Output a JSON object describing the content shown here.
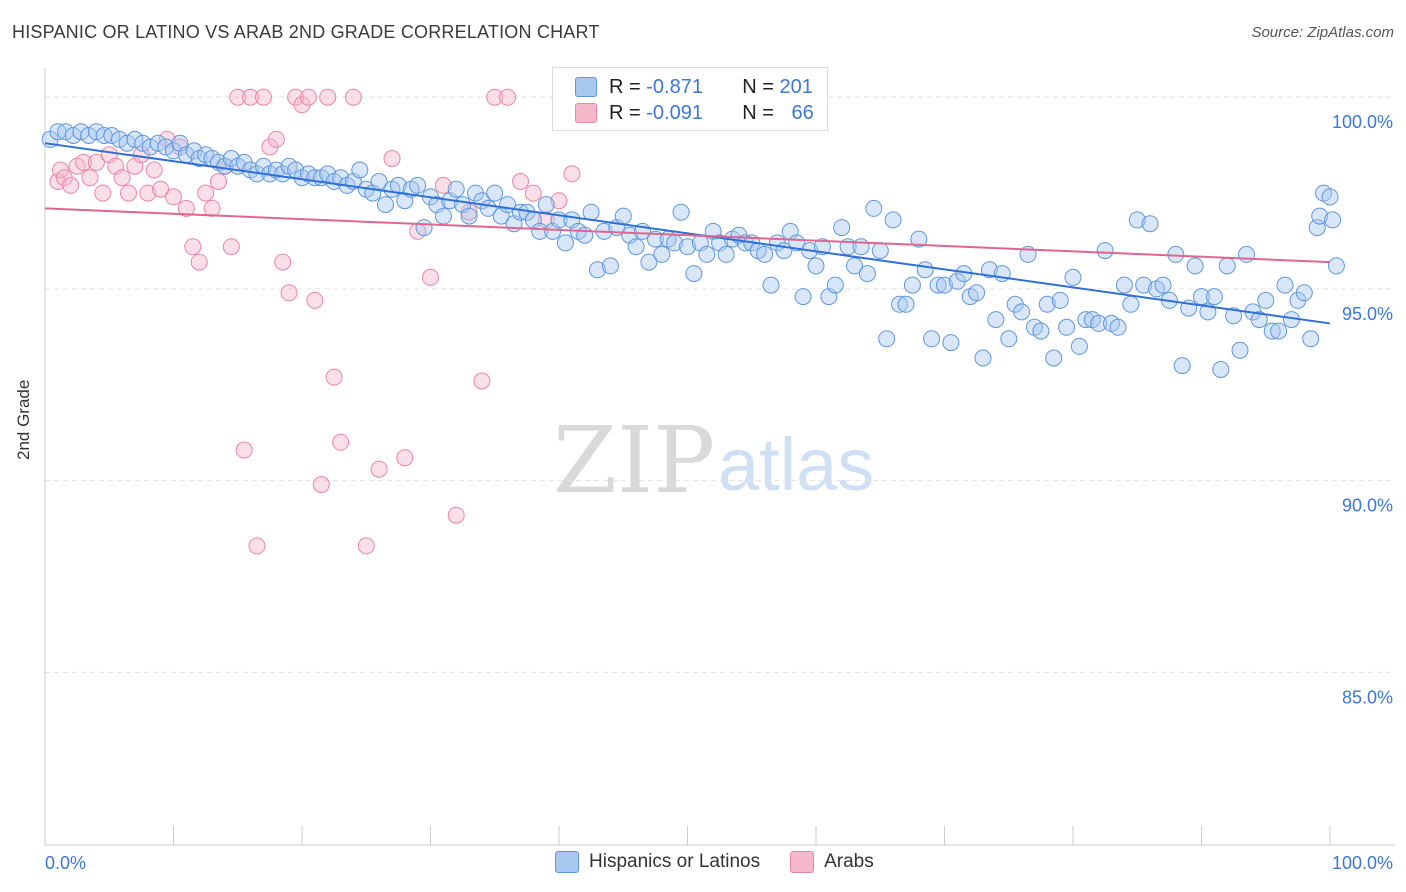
{
  "title": "HISPANIC OR LATINO VS ARAB 2ND GRADE CORRELATION CHART",
  "source": "Source: ZipAtlas.com",
  "watermark": {
    "zip": "ZIP",
    "atlas": "atlas"
  },
  "legend": {
    "rows": [
      {
        "r_label": "R = ",
        "r_value": "-0.871",
        "n_label": "N = ",
        "n_value": "201"
      },
      {
        "r_label": "R = ",
        "r_value": "-0.091",
        "n_label": "N = ",
        "n_value": "66"
      }
    ]
  },
  "colors": {
    "blue_fill": "#a9c8f0",
    "blue_stroke": "#5f97df",
    "blue_line": "#2f6fd6",
    "pink_fill": "#f6b9cc",
    "pink_stroke": "#ea86a5",
    "pink_line": "#e06690",
    "tick_label": "#3b78d8",
    "grid": "#e3e3e3"
  },
  "chart_data": {
    "type": "scatter",
    "title": "HISPANIC OR LATINO VS ARAB 2ND GRADE CORRELATION CHART",
    "xlabel": "",
    "ylabel": "2nd Grade",
    "xlim": [
      0,
      100
    ],
    "ylim": [
      80.5,
      100.5
    ],
    "x_tick_labels": [
      "0.0%",
      "100.0%"
    ],
    "y_ticks": [
      85,
      90,
      95,
      100
    ],
    "y_tick_labels": [
      "85.0%",
      "90.0%",
      "95.0%",
      "100.0%"
    ],
    "grid": true,
    "legend_position": "top-center",
    "series": [
      {
        "name": "Hispanics or Latinos",
        "r": -0.871,
        "n": 201,
        "trend": [
          [
            0,
            98.8
          ],
          [
            100,
            94.1
          ]
        ],
        "points": [
          [
            0.4,
            98.9
          ],
          [
            1,
            99.1
          ],
          [
            1.6,
            99.1
          ],
          [
            2.2,
            99.0
          ],
          [
            2.8,
            99.1
          ],
          [
            3.4,
            99.0
          ],
          [
            4,
            99.1
          ],
          [
            4.6,
            99.0
          ],
          [
            5.2,
            99.0
          ],
          [
            5.8,
            98.9
          ],
          [
            6.4,
            98.8
          ],
          [
            7,
            98.9
          ],
          [
            7.6,
            98.8
          ],
          [
            8.2,
            98.7
          ],
          [
            8.8,
            98.8
          ],
          [
            9.4,
            98.7
          ],
          [
            10,
            98.6
          ],
          [
            10.5,
            98.8
          ],
          [
            11,
            98.5
          ],
          [
            11.6,
            98.6
          ],
          [
            12,
            98.4
          ],
          [
            12.5,
            98.5
          ],
          [
            13,
            98.4
          ],
          [
            13.5,
            98.3
          ],
          [
            14,
            98.2
          ],
          [
            14.5,
            98.4
          ],
          [
            15,
            98.2
          ],
          [
            15.5,
            98.3
          ],
          [
            16,
            98.1
          ],
          [
            16.5,
            98.0
          ],
          [
            17,
            98.2
          ],
          [
            17.5,
            98.0
          ],
          [
            18,
            98.1
          ],
          [
            18.5,
            98.0
          ],
          [
            19,
            98.2
          ],
          [
            19.5,
            98.1
          ],
          [
            20,
            97.9
          ],
          [
            20.5,
            98.0
          ],
          [
            21,
            97.9
          ],
          [
            21.5,
            97.9
          ],
          [
            22,
            98.0
          ],
          [
            22.5,
            97.8
          ],
          [
            23,
            97.9
          ],
          [
            23.5,
            97.7
          ],
          [
            24,
            97.8
          ],
          [
            24.5,
            98.1
          ],
          [
            25,
            97.6
          ],
          [
            25.5,
            97.5
          ],
          [
            26,
            97.8
          ],
          [
            26.5,
            97.2
          ],
          [
            27,
            97.6
          ],
          [
            27.5,
            97.7
          ],
          [
            28,
            97.3
          ],
          [
            28.5,
            97.6
          ],
          [
            29,
            97.7
          ],
          [
            29.5,
            96.6
          ],
          [
            30,
            97.4
          ],
          [
            30.5,
            97.2
          ],
          [
            31,
            96.9
          ],
          [
            31.5,
            97.3
          ],
          [
            32,
            97.6
          ],
          [
            32.5,
            97.2
          ],
          [
            33,
            96.9
          ],
          [
            33.5,
            97.5
          ],
          [
            34,
            97.3
          ],
          [
            34.5,
            97.1
          ],
          [
            35,
            97.5
          ],
          [
            35.5,
            96.9
          ],
          [
            36,
            97.2
          ],
          [
            36.5,
            96.7
          ],
          [
            37,
            97.0
          ],
          [
            37.5,
            97.0
          ],
          [
            38,
            96.8
          ],
          [
            38.5,
            96.5
          ],
          [
            39,
            97.2
          ],
          [
            39.5,
            96.5
          ],
          [
            40,
            96.8
          ],
          [
            40.5,
            96.2
          ],
          [
            41,
            96.8
          ],
          [
            41.5,
            96.5
          ],
          [
            42,
            96.4
          ],
          [
            42.5,
            97.0
          ],
          [
            43,
            95.5
          ],
          [
            43.5,
            96.5
          ],
          [
            44,
            95.6
          ],
          [
            44.5,
            96.6
          ],
          [
            45,
            96.9
          ],
          [
            45.5,
            96.4
          ],
          [
            46,
            96.1
          ],
          [
            46.5,
            96.5
          ],
          [
            47,
            95.7
          ],
          [
            47.5,
            96.3
          ],
          [
            48,
            95.9
          ],
          [
            48.5,
            96.3
          ],
          [
            49,
            96.2
          ],
          [
            49.5,
            97.0
          ],
          [
            50,
            96.1
          ],
          [
            50.5,
            95.4
          ],
          [
            51,
            96.2
          ],
          [
            51.5,
            95.9
          ],
          [
            52,
            96.5
          ],
          [
            52.5,
            96.2
          ],
          [
            53,
            95.9
          ],
          [
            53.5,
            96.3
          ],
          [
            54,
            96.4
          ],
          [
            54.5,
            96.2
          ],
          [
            55,
            96.2
          ],
          [
            55.5,
            96.0
          ],
          [
            56,
            95.9
          ],
          [
            56.5,
            95.1
          ],
          [
            57,
            96.2
          ],
          [
            57.5,
            96.0
          ],
          [
            58,
            96.5
          ],
          [
            58.5,
            96.2
          ],
          [
            59,
            94.8
          ],
          [
            59.5,
            96.0
          ],
          [
            60,
            95.6
          ],
          [
            60.5,
            96.1
          ],
          [
            61,
            94.8
          ],
          [
            61.5,
            95.1
          ],
          [
            62,
            96.6
          ],
          [
            62.5,
            96.1
          ],
          [
            63,
            95.6
          ],
          [
            63.5,
            96.1
          ],
          [
            64,
            95.4
          ],
          [
            64.5,
            97.1
          ],
          [
            65,
            96.0
          ],
          [
            65.5,
            93.7
          ],
          [
            66,
            96.8
          ],
          [
            66.5,
            94.6
          ],
          [
            67,
            94.6
          ],
          [
            67.5,
            95.1
          ],
          [
            68,
            96.3
          ],
          [
            68.5,
            95.5
          ],
          [
            69,
            93.7
          ],
          [
            69.5,
            95.1
          ],
          [
            70,
            95.1
          ],
          [
            70.5,
            93.6
          ],
          [
            71,
            95.2
          ],
          [
            71.5,
            95.4
          ],
          [
            72,
            94.8
          ],
          [
            72.5,
            94.9
          ],
          [
            73,
            93.2
          ],
          [
            73.5,
            95.5
          ],
          [
            74,
            94.2
          ],
          [
            74.5,
            95.4
          ],
          [
            75,
            93.7
          ],
          [
            75.5,
            94.6
          ],
          [
            76,
            94.4
          ],
          [
            76.5,
            95.9
          ],
          [
            77,
            94.0
          ],
          [
            77.5,
            93.9
          ],
          [
            78,
            94.6
          ],
          [
            78.5,
            93.2
          ],
          [
            79,
            94.7
          ],
          [
            79.5,
            94.0
          ],
          [
            80,
            95.3
          ],
          [
            80.5,
            93.5
          ],
          [
            81,
            94.2
          ],
          [
            81.5,
            94.2
          ],
          [
            82,
            94.1
          ],
          [
            82.5,
            96.0
          ],
          [
            83,
            94.1
          ],
          [
            83.5,
            94.0
          ],
          [
            84,
            95.1
          ],
          [
            84.5,
            94.6
          ],
          [
            85,
            96.8
          ],
          [
            85.5,
            95.1
          ],
          [
            86,
            96.7
          ],
          [
            86.5,
            95.0
          ],
          [
            87,
            95.1
          ],
          [
            87.5,
            94.7
          ],
          [
            88,
            95.9
          ],
          [
            88.5,
            93.0
          ],
          [
            89,
            94.5
          ],
          [
            89.5,
            95.6
          ],
          [
            90,
            94.8
          ],
          [
            90.5,
            94.4
          ],
          [
            91,
            94.8
          ],
          [
            91.5,
            92.9
          ],
          [
            92,
            95.6
          ],
          [
            92.5,
            94.3
          ],
          [
            93,
            93.4
          ],
          [
            93.5,
            95.9
          ],
          [
            94,
            94.4
          ],
          [
            94.5,
            94.2
          ],
          [
            95,
            94.7
          ],
          [
            95.5,
            93.9
          ],
          [
            96,
            93.9
          ],
          [
            96.5,
            95.1
          ],
          [
            97,
            94.2
          ],
          [
            97.5,
            94.7
          ],
          [
            98,
            94.9
          ],
          [
            98.5,
            93.7
          ],
          [
            99,
            96.6
          ],
          [
            99.2,
            96.9
          ],
          [
            99.5,
            97.5
          ],
          [
            100,
            97.4
          ],
          [
            100.2,
            96.8
          ],
          [
            100.5,
            95.6
          ]
        ]
      },
      {
        "name": "Arabs",
        "r": -0.091,
        "n": 66,
        "trend": [
          [
            0,
            97.1
          ],
          [
            100,
            95.7
          ]
        ],
        "points": [
          [
            1,
            97.8
          ],
          [
            1.2,
            98.1
          ],
          [
            1.5,
            97.9
          ],
          [
            2,
            97.7
          ],
          [
            2.5,
            98.2
          ],
          [
            3,
            98.3
          ],
          [
            3.5,
            97.9
          ],
          [
            4,
            98.3
          ],
          [
            4.5,
            97.5
          ],
          [
            5,
            98.5
          ],
          [
            5.5,
            98.2
          ],
          [
            6,
            97.9
          ],
          [
            6.5,
            97.5
          ],
          [
            7,
            98.2
          ],
          [
            7.5,
            98.5
          ],
          [
            8,
            97.5
          ],
          [
            8.5,
            98.1
          ],
          [
            9,
            97.6
          ],
          [
            9.5,
            98.9
          ],
          [
            10,
            97.4
          ],
          [
            10.5,
            98.7
          ],
          [
            11,
            97.1
          ],
          [
            11.5,
            96.1
          ],
          [
            12,
            95.7
          ],
          [
            12.5,
            97.5
          ],
          [
            13,
            97.1
          ],
          [
            13.5,
            97.8
          ],
          [
            14,
            98.2
          ],
          [
            14.5,
            96.1
          ],
          [
            15,
            100
          ],
          [
            15.5,
            90.8
          ],
          [
            16,
            100
          ],
          [
            16.5,
            88.3
          ],
          [
            17,
            100
          ],
          [
            17.5,
            98.7
          ],
          [
            18,
            98.9
          ],
          [
            18.5,
            95.7
          ],
          [
            19,
            94.9
          ],
          [
            19.5,
            100
          ],
          [
            20,
            99.8
          ],
          [
            20.5,
            100
          ],
          [
            21,
            94.7
          ],
          [
            21.5,
            89.9
          ],
          [
            22,
            100
          ],
          [
            22.5,
            92.7
          ],
          [
            23,
            91.0
          ],
          [
            24,
            100
          ],
          [
            25,
            88.3
          ],
          [
            26,
            90.3
          ],
          [
            27,
            98.4
          ],
          [
            28,
            90.6
          ],
          [
            29,
            96.5
          ],
          [
            30,
            95.3
          ],
          [
            31,
            97.7
          ],
          [
            32,
            89.1
          ],
          [
            33,
            97.0
          ],
          [
            34,
            92.6
          ],
          [
            35,
            100
          ],
          [
            36,
            100
          ],
          [
            37,
            97.8
          ],
          [
            38,
            97.5
          ],
          [
            39,
            96.8
          ],
          [
            40,
            97.3
          ],
          [
            41,
            98.0
          ],
          [
            42,
            100
          ],
          [
            43,
            100
          ]
        ]
      }
    ]
  },
  "bottom_legend": [
    "Hispanics or Latinos",
    "Arabs"
  ]
}
